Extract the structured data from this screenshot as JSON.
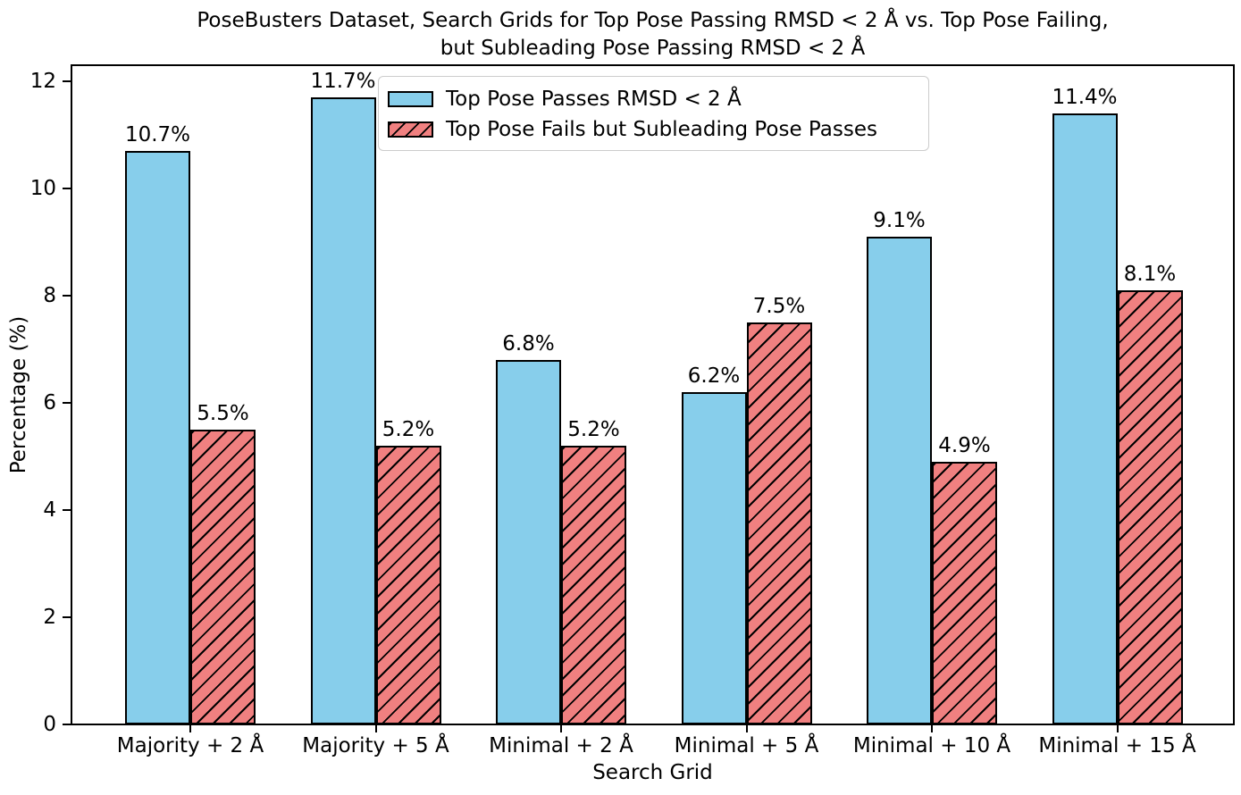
{
  "figure": {
    "title_line1": "PoseBusters Dataset, Search Grids for Top Pose Passing RMSD < 2 Å vs. Top Pose Failing,",
    "title_line2": "but Subleading Pose Passing RMSD < 2 Å"
  },
  "chart_data": {
    "type": "bar",
    "title": "PoseBusters Dataset, Search Grids for Top Pose Passing RMSD < 2 Å vs. Top Pose Failing, but Subleading Pose Passing RMSD < 2 Å",
    "xlabel": "Search Grid",
    "ylabel": "Percentage (%)",
    "categories": [
      "Majority + 2 Å",
      "Majority + 5 Å",
      "Minimal + 2 Å",
      "Minimal + 5 Å",
      "Minimal + 10 Å",
      "Minimal + 15 Å"
    ],
    "series": [
      {
        "name": "Top Pose Passes RMSD < 2 Å",
        "color": "#87CEEB",
        "hatch": false,
        "values": [
          10.7,
          11.7,
          6.8,
          6.2,
          9.1,
          11.4
        ],
        "labels": [
          "10.7%",
          "11.7%",
          "6.8%",
          "6.2%",
          "9.1%",
          "11.4%"
        ]
      },
      {
        "name": "Top Pose Fails but Subleading Pose Passes",
        "color": "#F08080",
        "hatch": true,
        "values": [
          5.5,
          5.2,
          5.2,
          7.5,
          4.9,
          8.1
        ],
        "labels": [
          "5.5%",
          "5.2%",
          "5.2%",
          "7.5%",
          "4.9%",
          "8.1%"
        ]
      }
    ],
    "yticks": [
      0,
      2,
      4,
      6,
      8,
      10,
      12
    ],
    "ylim": [
      0,
      12.3
    ],
    "grid": false,
    "legend_position": "upper center",
    "bar_edge_color": "#000000",
    "legend_border_color": "#cccccc",
    "text_color": "#000000"
  }
}
